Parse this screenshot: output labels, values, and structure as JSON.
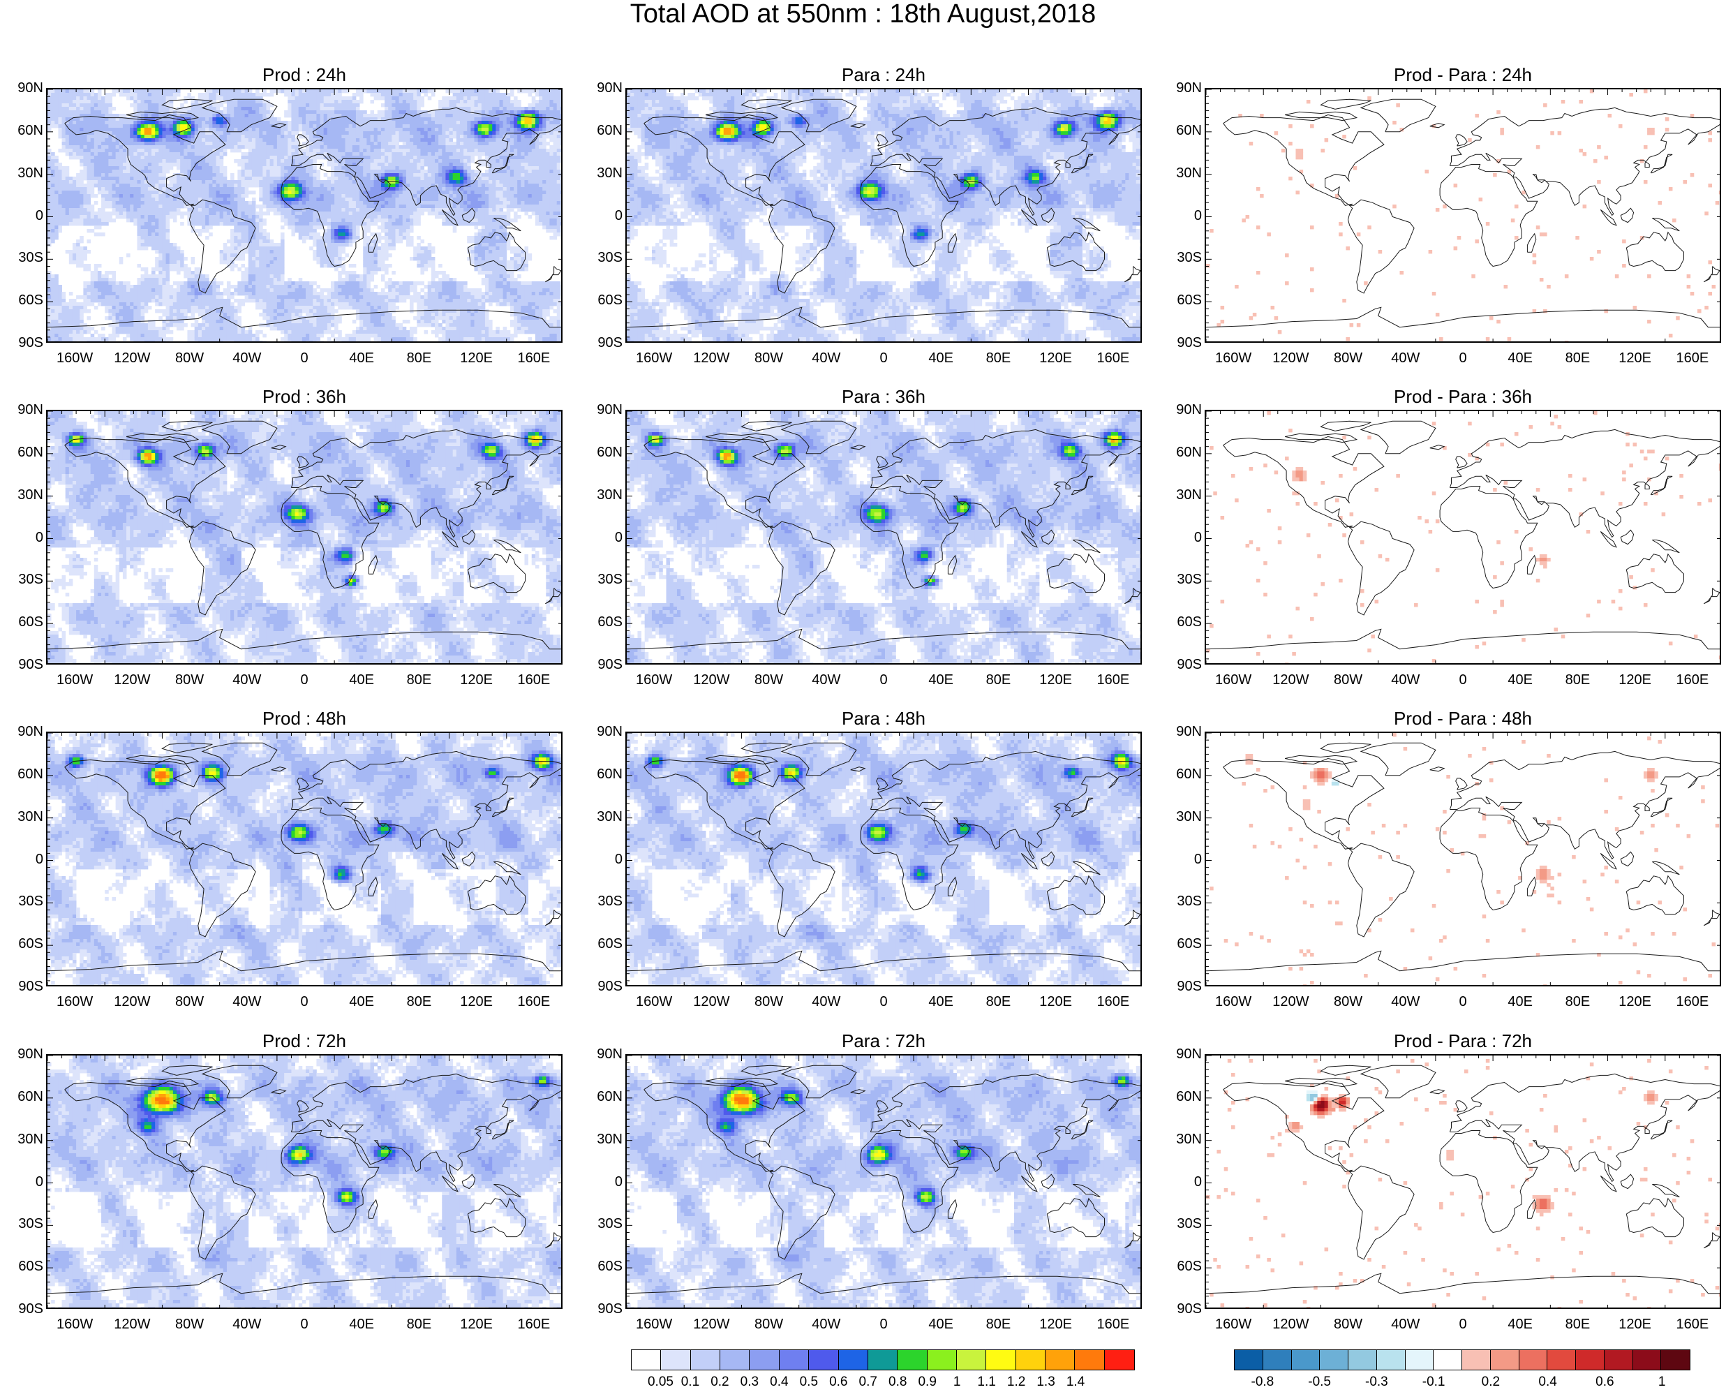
{
  "title": "Total AOD at 550nm : 18th August,2018",
  "lat_labels": [
    "90N",
    "60N",
    "30N",
    "0",
    "30S",
    "60S",
    "90S"
  ],
  "lon_labels": [
    "160W",
    "120W",
    "80W",
    "40W",
    "0",
    "40E",
    "80E",
    "120E",
    "160E"
  ],
  "panels": [
    {
      "title": "Prod : 24h",
      "kind": "aod",
      "lead": "24h"
    },
    {
      "title": "Para : 24h",
      "kind": "aod",
      "lead": "24h"
    },
    {
      "title": "Prod - Para : 24h",
      "kind": "diff",
      "lead": "24h"
    },
    {
      "title": "Prod : 36h",
      "kind": "aod",
      "lead": "36h"
    },
    {
      "title": "Para : 36h",
      "kind": "aod",
      "lead": "36h"
    },
    {
      "title": "Prod - Para : 36h",
      "kind": "diff",
      "lead": "36h"
    },
    {
      "title": "Prod : 48h",
      "kind": "aod",
      "lead": "48h"
    },
    {
      "title": "Para : 48h",
      "kind": "aod",
      "lead": "48h"
    },
    {
      "title": "Prod - Para : 48h",
      "kind": "diff",
      "lead": "48h"
    },
    {
      "title": "Prod : 72h",
      "kind": "aod",
      "lead": "72h"
    },
    {
      "title": "Para : 72h",
      "kind": "aod",
      "lead": "72h"
    },
    {
      "title": "Prod - Para : 72h",
      "kind": "diff",
      "lead": "72h"
    }
  ],
  "aod_colorbar": {
    "labels": [
      "0.05",
      "0.1",
      "0.2",
      "0.3",
      "0.4",
      "0.5",
      "0.6",
      "0.7",
      "0.8",
      "0.9",
      "1",
      "1.1",
      "1.2",
      "1.3",
      "1.4"
    ],
    "colors": [
      "#ffffff",
      "#dde4fb",
      "#c2cff8",
      "#a6b8f4",
      "#8c9ef1",
      "#6f7ff0",
      "#4f5aec",
      "#1e64e6",
      "#0f9a97",
      "#2cd42c",
      "#8bf01e",
      "#c9f33d",
      "#fffb12",
      "#ffd20c",
      "#ffa20a",
      "#ff7a0c",
      "#ff1f12"
    ]
  },
  "diff_colorbar": {
    "labels": [
      "-0.8",
      "-0.5",
      "-0.3",
      "-0.1",
      "0.2",
      "0.4",
      "0.6",
      "1"
    ],
    "colors": [
      "#0b5ea6",
      "#2f7fbc",
      "#4a98cb",
      "#6db0d6",
      "#93c9e0",
      "#b9e2ee",
      "#e4f5fb",
      "#ffffff",
      "#f8c0b4",
      "#f39a86",
      "#ec7060",
      "#e24a3e",
      "#cf2a2a",
      "#b21922",
      "#8c0c1a",
      "#5e0711"
    ]
  }
}
